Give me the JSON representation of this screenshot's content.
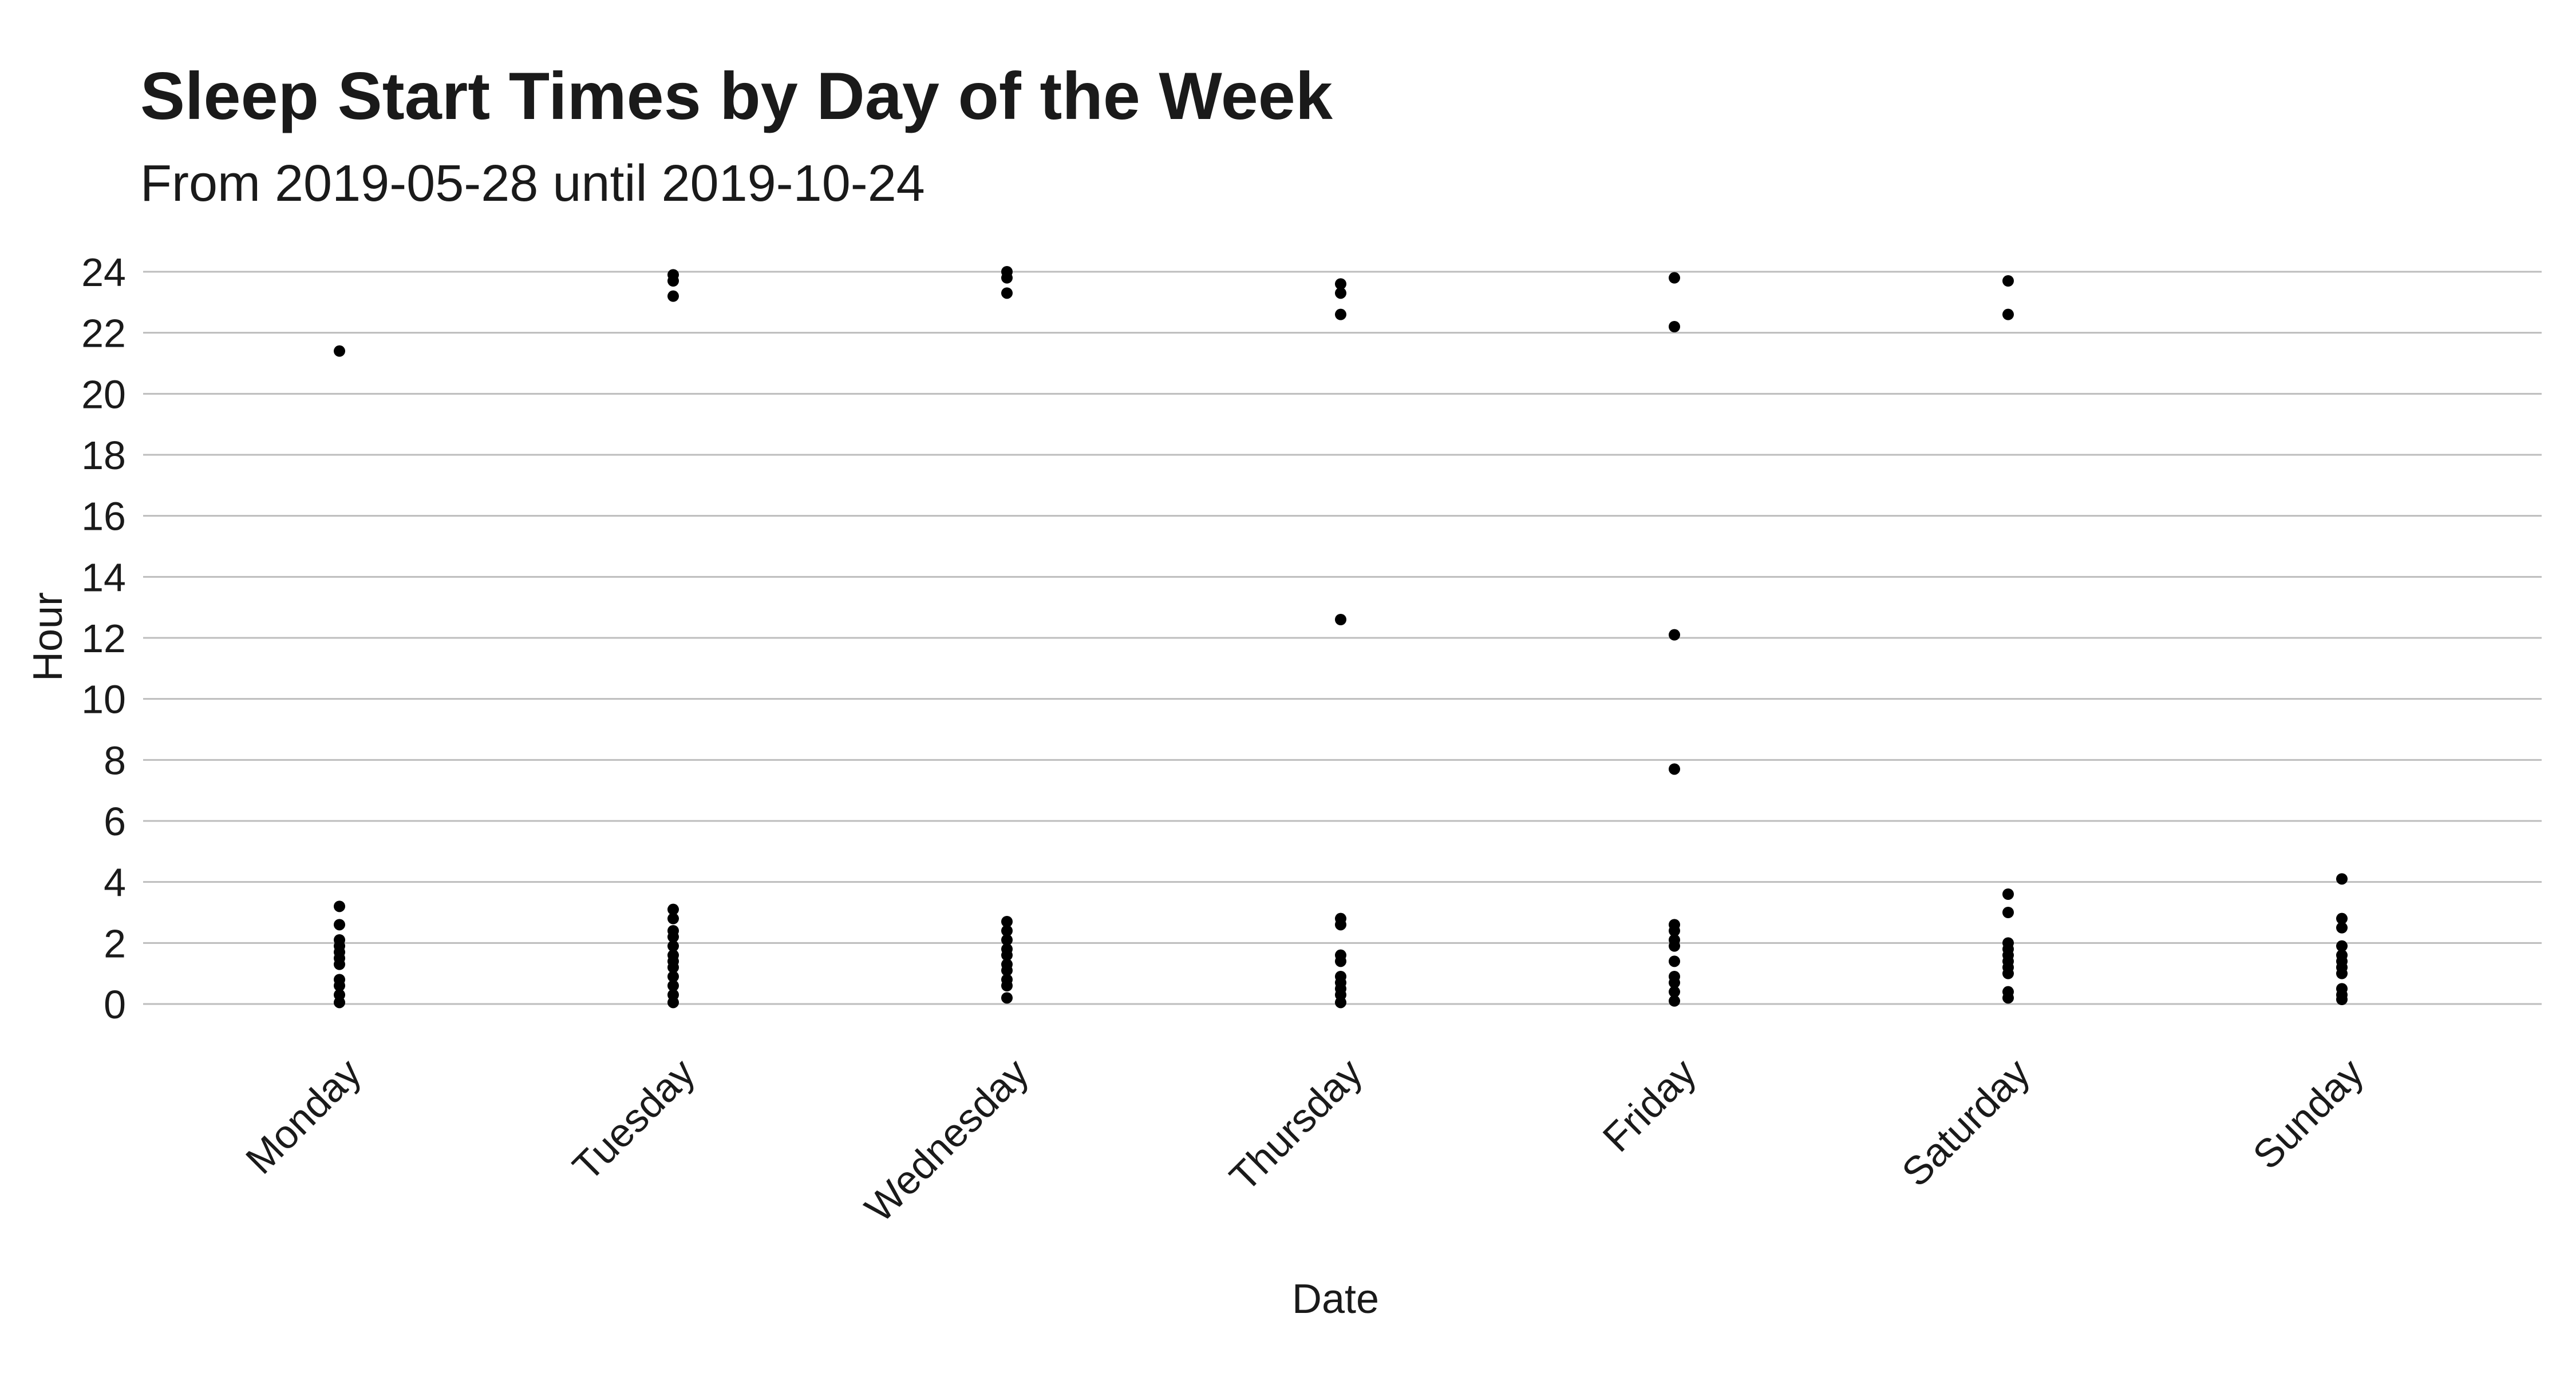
{
  "chart_data": {
    "type": "scatter",
    "title": "Sleep Start Times by Day of the Week",
    "subtitle": "From 2019-05-28 until 2019-10-24",
    "xlabel": "Date",
    "ylabel": "Hour",
    "categories": [
      "Monday",
      "Tuesday",
      "Wednesday",
      "Thursday",
      "Friday",
      "Saturday",
      "Sunday"
    ],
    "y_ticks": [
      0,
      2,
      4,
      6,
      8,
      10,
      12,
      14,
      16,
      18,
      20,
      22,
      24
    ],
    "ylim": [
      0,
      24
    ],
    "grid": true,
    "legend": "none",
    "points": [
      {
        "x": "Monday",
        "y": 21.4
      },
      {
        "x": "Monday",
        "y": 3.2
      },
      {
        "x": "Monday",
        "y": 2.6
      },
      {
        "x": "Monday",
        "y": 2.1
      },
      {
        "x": "Monday",
        "y": 1.9
      },
      {
        "x": "Monday",
        "y": 1.7
      },
      {
        "x": "Monday",
        "y": 1.5
      },
      {
        "x": "Monday",
        "y": 1.3
      },
      {
        "x": "Monday",
        "y": 0.8
      },
      {
        "x": "Monday",
        "y": 0.6
      },
      {
        "x": "Monday",
        "y": 0.3
      },
      {
        "x": "Monday",
        "y": 0.05
      },
      {
        "x": "Tuesday",
        "y": 23.9
      },
      {
        "x": "Tuesday",
        "y": 23.7
      },
      {
        "x": "Tuesday",
        "y": 23.2
      },
      {
        "x": "Tuesday",
        "y": 3.1
      },
      {
        "x": "Tuesday",
        "y": 2.8
      },
      {
        "x": "Tuesday",
        "y": 2.4
      },
      {
        "x": "Tuesday",
        "y": 2.2
      },
      {
        "x": "Tuesday",
        "y": 1.9
      },
      {
        "x": "Tuesday",
        "y": 1.6
      },
      {
        "x": "Tuesday",
        "y": 1.4
      },
      {
        "x": "Tuesday",
        "y": 1.2
      },
      {
        "x": "Tuesday",
        "y": 0.9
      },
      {
        "x": "Tuesday",
        "y": 0.6
      },
      {
        "x": "Tuesday",
        "y": 0.3
      },
      {
        "x": "Tuesday",
        "y": 0.05
      },
      {
        "x": "Wednesday",
        "y": 24.0
      },
      {
        "x": "Wednesday",
        "y": 23.8
      },
      {
        "x": "Wednesday",
        "y": 23.3
      },
      {
        "x": "Wednesday",
        "y": 2.7
      },
      {
        "x": "Wednesday",
        "y": 2.4
      },
      {
        "x": "Wednesday",
        "y": 2.1
      },
      {
        "x": "Wednesday",
        "y": 1.8
      },
      {
        "x": "Wednesday",
        "y": 1.6
      },
      {
        "x": "Wednesday",
        "y": 1.3
      },
      {
        "x": "Wednesday",
        "y": 1.1
      },
      {
        "x": "Wednesday",
        "y": 0.8
      },
      {
        "x": "Wednesday",
        "y": 0.6
      },
      {
        "x": "Wednesday",
        "y": 0.2
      },
      {
        "x": "Thursday",
        "y": 23.6
      },
      {
        "x": "Thursday",
        "y": 23.3
      },
      {
        "x": "Thursday",
        "y": 22.6
      },
      {
        "x": "Thursday",
        "y": 12.6
      },
      {
        "x": "Thursday",
        "y": 2.8
      },
      {
        "x": "Thursday",
        "y": 2.6
      },
      {
        "x": "Thursday",
        "y": 1.6
      },
      {
        "x": "Thursday",
        "y": 1.4
      },
      {
        "x": "Thursday",
        "y": 0.9
      },
      {
        "x": "Thursday",
        "y": 0.7
      },
      {
        "x": "Thursday",
        "y": 0.5
      },
      {
        "x": "Thursday",
        "y": 0.3
      },
      {
        "x": "Thursday",
        "y": 0.05
      },
      {
        "x": "Friday",
        "y": 23.8
      },
      {
        "x": "Friday",
        "y": 22.2
      },
      {
        "x": "Friday",
        "y": 12.1
      },
      {
        "x": "Friday",
        "y": 7.7
      },
      {
        "x": "Friday",
        "y": 2.6
      },
      {
        "x": "Friday",
        "y": 2.4
      },
      {
        "x": "Friday",
        "y": 2.1
      },
      {
        "x": "Friday",
        "y": 1.9
      },
      {
        "x": "Friday",
        "y": 1.4
      },
      {
        "x": "Friday",
        "y": 0.9
      },
      {
        "x": "Friday",
        "y": 0.7
      },
      {
        "x": "Friday",
        "y": 0.4
      },
      {
        "x": "Friday",
        "y": 0.1
      },
      {
        "x": "Saturday",
        "y": 23.7
      },
      {
        "x": "Saturday",
        "y": 22.6
      },
      {
        "x": "Saturday",
        "y": 3.6
      },
      {
        "x": "Saturday",
        "y": 3.0
      },
      {
        "x": "Saturday",
        "y": 2.0
      },
      {
        "x": "Saturday",
        "y": 1.8
      },
      {
        "x": "Saturday",
        "y": 1.6
      },
      {
        "x": "Saturday",
        "y": 1.4
      },
      {
        "x": "Saturday",
        "y": 1.2
      },
      {
        "x": "Saturday",
        "y": 1.0
      },
      {
        "x": "Saturday",
        "y": 0.4
      },
      {
        "x": "Saturday",
        "y": 0.2
      },
      {
        "x": "Sunday",
        "y": 4.1
      },
      {
        "x": "Sunday",
        "y": 2.8
      },
      {
        "x": "Sunday",
        "y": 2.5
      },
      {
        "x": "Sunday",
        "y": 1.9
      },
      {
        "x": "Sunday",
        "y": 1.6
      },
      {
        "x": "Sunday",
        "y": 1.4
      },
      {
        "x": "Sunday",
        "y": 1.2
      },
      {
        "x": "Sunday",
        "y": 1.0
      },
      {
        "x": "Sunday",
        "y": 0.5
      },
      {
        "x": "Sunday",
        "y": 0.3
      },
      {
        "x": "Sunday",
        "y": 0.15
      }
    ]
  }
}
